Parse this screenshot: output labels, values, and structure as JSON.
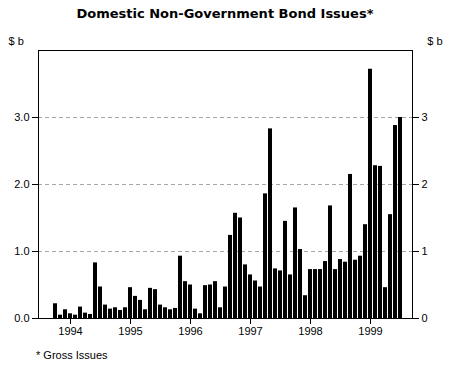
{
  "chart_data": {
    "type": "bar",
    "title": "Domestic Non-Government Bond Issues*",
    "footnote": "* Gross Issues",
    "ylabel": "$ b",
    "y2label": "$ b",
    "categories": [
      null,
      null,
      null,
      null,
      "1994",
      null,
      null,
      null,
      null,
      null,
      null,
      null,
      null,
      null,
      null,
      null,
      "1995",
      null,
      null,
      null,
      null,
      null,
      null,
      null,
      null,
      null,
      null,
      null,
      "1996",
      null,
      null,
      null,
      null,
      null,
      null,
      null,
      null,
      null,
      null,
      null,
      "1997",
      null,
      null,
      null,
      null,
      null,
      null,
      null,
      null,
      null,
      null,
      null,
      "1998",
      null,
      null,
      null,
      null,
      null,
      null,
      null,
      null,
      null,
      null,
      null,
      "1999",
      null,
      null,
      null,
      null,
      null,
      null
    ],
    "values": [
      0.0,
      0.22,
      0.05,
      0.13,
      0.07,
      0.05,
      0.17,
      0.08,
      0.06,
      0.83,
      0.47,
      0.2,
      0.14,
      0.16,
      0.12,
      0.16,
      0.46,
      0.33,
      0.27,
      0.13,
      0.45,
      0.43,
      0.2,
      0.16,
      0.13,
      0.15,
      0.93,
      0.55,
      0.5,
      0.14,
      0.07,
      0.49,
      0.5,
      0.55,
      0.16,
      0.47,
      1.24,
      1.57,
      1.5,
      0.8,
      0.65,
      0.56,
      0.47,
      1.86,
      2.83,
      0.74,
      0.71,
      1.45,
      0.65,
      1.65,
      1.03,
      0.34,
      0.73,
      0.73,
      0.73,
      0.85,
      1.68,
      0.73,
      0.88,
      0.84,
      2.15,
      0.87,
      0.93,
      1.4,
      3.72,
      2.28,
      2.27,
      0.46,
      1.55,
      2.88,
      3.0
    ],
    "ylim": [
      0,
      4.0
    ],
    "yticks": [
      0,
      1,
      2,
      3
    ],
    "y2lim": [
      0,
      4.0
    ],
    "y2ticks": [
      0,
      1,
      2,
      3
    ],
    "grid": true
  }
}
